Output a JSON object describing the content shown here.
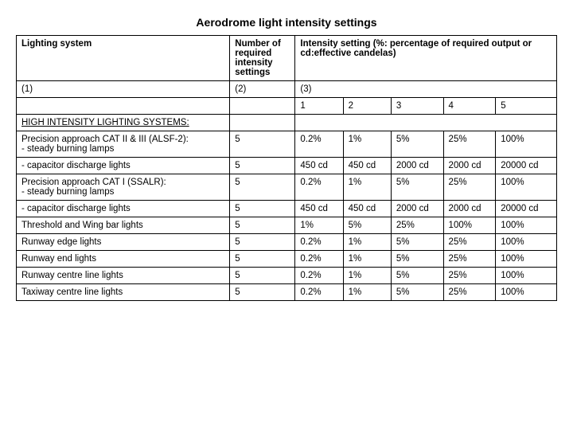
{
  "title": "Aerodrome light intensity settings",
  "headers": {
    "h1": "Lighting system",
    "h2": "Number of required intensity settings",
    "h3": "Intensity setting (%: percentage of required output or cd:effective candelas)"
  },
  "subheaders": {
    "c1": "(1)",
    "c2": "(2)",
    "c3": "(3)"
  },
  "cols": {
    "n1": "1",
    "n2": "2",
    "n3": "3",
    "n4": "4",
    "n5": "5"
  },
  "section": "HIGH INTENSITY LIGHTING SYSTEMS:",
  "rows": [
    {
      "label": "Precision approach CAT II & III (ALSF-2):\n- steady burning lamps",
      "settings": "5",
      "v1": "0.2%",
      "v2": "1%",
      "v3": "5%",
      "v4": "25%",
      "v5": "100%"
    },
    {
      "label": "- capacitor discharge lights",
      "settings": "5",
      "v1": "450 cd",
      "v2": "450 cd",
      "v3": "2000 cd",
      "v4": "2000 cd",
      "v5": "20000 cd"
    },
    {
      "label": "Precision approach CAT I (SSALR):\n- steady burning lamps",
      "settings": "5",
      "v1": "0.2%",
      "v2": "1%",
      "v3": "5%",
      "v4": "25%",
      "v5": "100%"
    },
    {
      "label": "- capacitor discharge lights",
      "settings": "5",
      "v1": "450 cd",
      "v2": "450 cd",
      "v3": "2000 cd",
      "v4": "2000 cd",
      "v5": "20000 cd"
    },
    {
      "label": "Threshold and Wing bar lights",
      "settings": "5",
      "v1": "1%",
      "v2": "5%",
      "v3": "25%",
      "v4": "100%",
      "v5": "100%"
    },
    {
      "label": "Runway edge lights",
      "settings": "5",
      "v1": "0.2%",
      "v2": "1%",
      "v3": "5%",
      "v4": "25%",
      "v5": "100%"
    },
    {
      "label": "Runway end lights",
      "settings": "5",
      "v1": "0.2%",
      "v2": "1%",
      "v3": "5%",
      "v4": "25%",
      "v5": "100%"
    },
    {
      "label": "Runway centre line lights",
      "settings": "5",
      "v1": "0.2%",
      "v2": "1%",
      "v3": "5%",
      "v4": "25%",
      "v5": "100%"
    },
    {
      "label": "Taxiway centre line lights",
      "settings": "5",
      "v1": "0.2%",
      "v2": "1%",
      "v3": "5%",
      "v4": "25%",
      "v5": "100%"
    }
  ],
  "styling": {
    "background_color": "#ffffff",
    "text_color": "#000000",
    "border_color": "#000000",
    "title_fontsize": 14,
    "cell_fontsize": 11.5,
    "font_family": "Arial"
  }
}
